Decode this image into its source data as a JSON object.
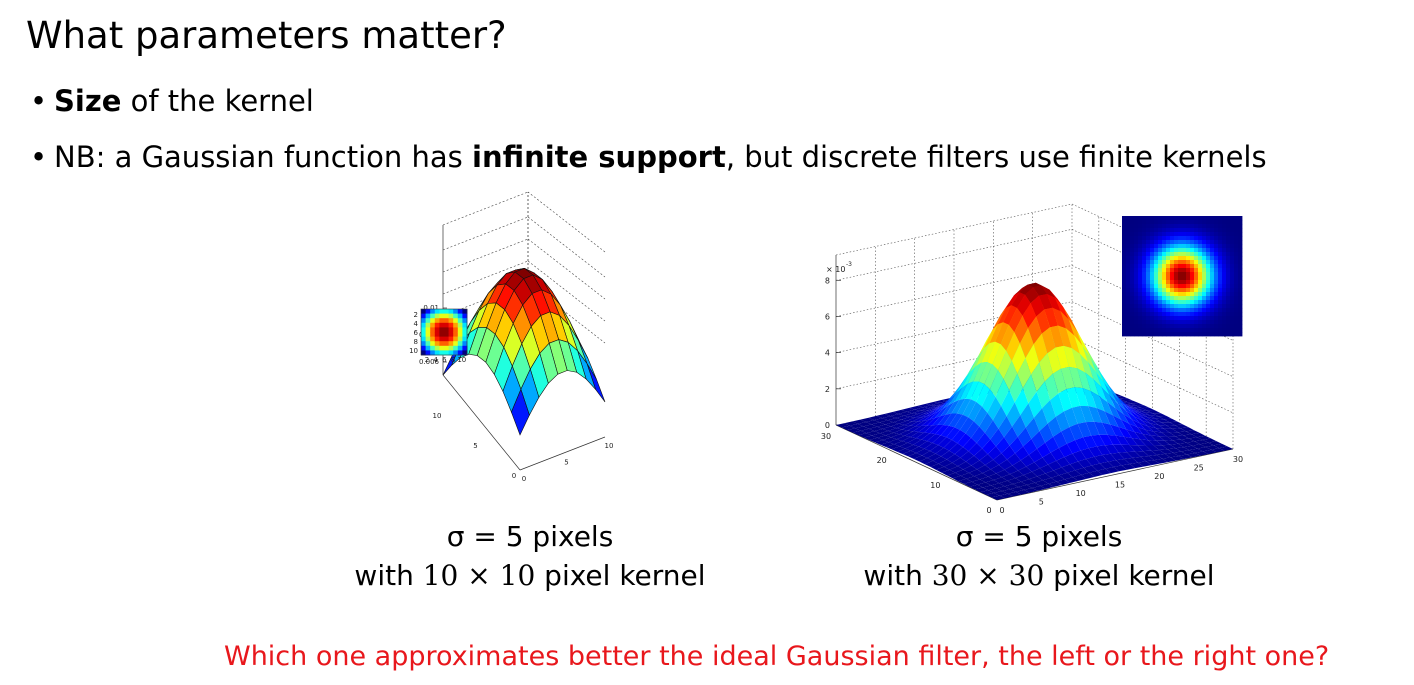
{
  "slide": {
    "title": "What parameters matter?",
    "bullet1_bold": "Size",
    "bullet1_rest": " of the kernel",
    "bullet2_pre": "NB: a Gaussian function has ",
    "bullet2_bold": "infinite support",
    "bullet2_post": ", but discrete filters use finite kernels",
    "question": "Which one approximates better the ideal Gaussian filter, the left or the right one?"
  },
  "captions": {
    "left_line1": "σ = 5 pixels",
    "left_line2_n": "10 × 10",
    "left_line2_pre": "with ",
    "left_line2_post": " pixel kernel",
    "right_line1": "σ = 5 pixels",
    "right_line2_pre": "with ",
    "right_line2_n": "30 × 30",
    "right_line2_post": " pixel kernel"
  },
  "colors": {
    "question": "#e8171c",
    "surface_base": "#0b2bb8"
  },
  "chart_data": [
    {
      "type": "surface",
      "kernel_size": 10,
      "sigma": 5,
      "z_ticks": [
        "0.006",
        "0.008",
        "0.01"
      ],
      "x_ticks": [
        "0",
        "5",
        "10"
      ],
      "y_ticks": [
        "0",
        "5",
        "10"
      ],
      "inset_x_ticks": [
        "2",
        "4",
        "6",
        "8",
        "10"
      ],
      "inset_y_ticks": [
        "2",
        "4",
        "6",
        "8",
        "10"
      ]
    },
    {
      "type": "surface",
      "kernel_size": 30,
      "sigma": 5,
      "z_exponent_label": "× 10",
      "z_exponent": "-3",
      "z_ticks": [
        "0",
        "2",
        "4",
        "6",
        "8"
      ],
      "x_ticks": [
        "0",
        "5",
        "10",
        "15",
        "20",
        "25",
        "30"
      ],
      "y_ticks": [
        "0",
        "10",
        "20",
        "30"
      ]
    }
  ]
}
